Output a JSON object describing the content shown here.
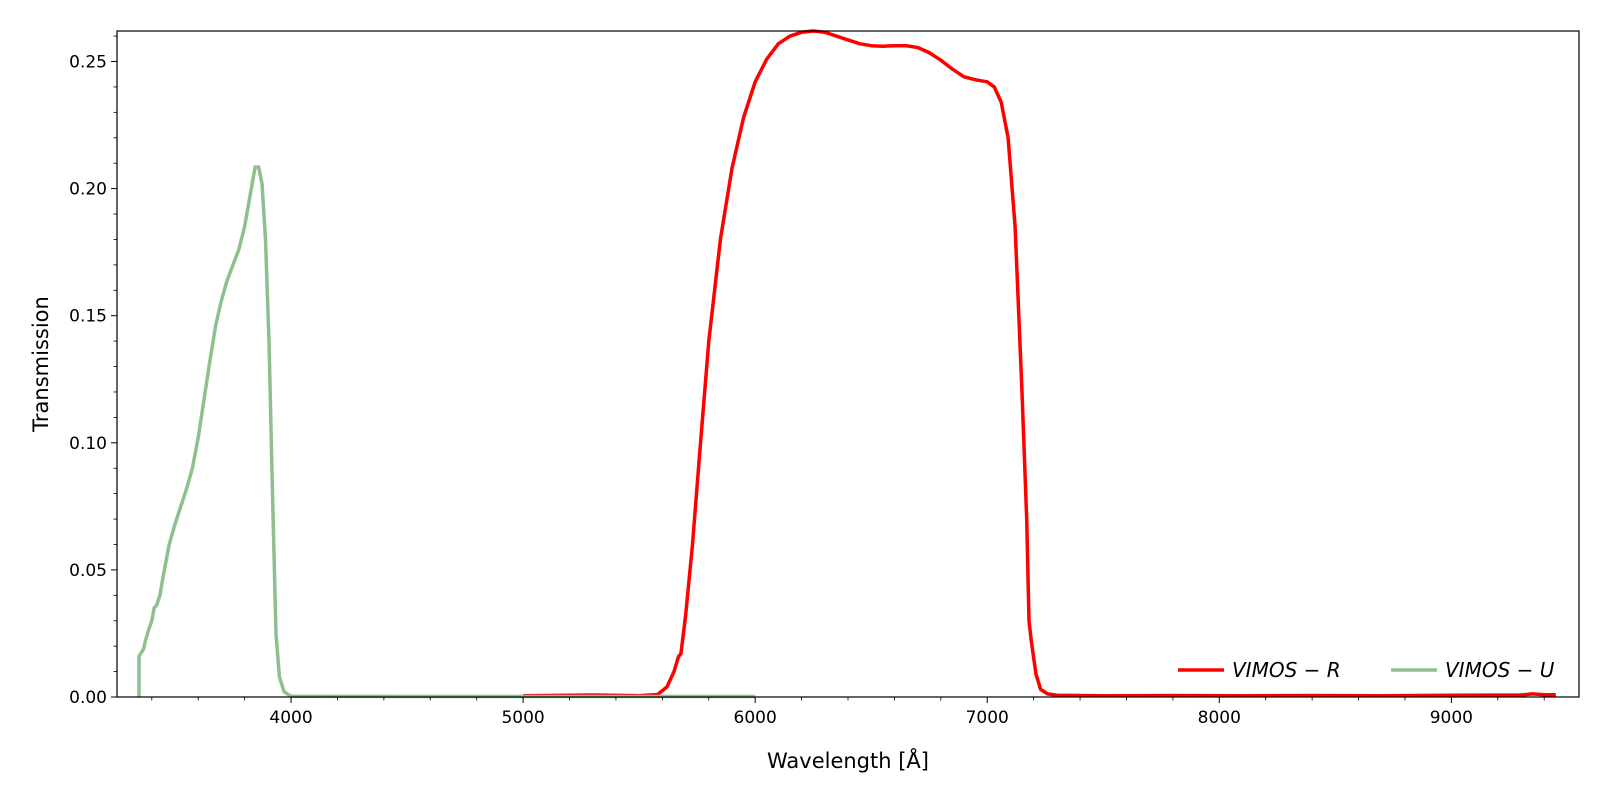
{
  "chart_data": {
    "type": "line",
    "xlabel": "Wavelength [Å]",
    "ylabel": "Transmission",
    "xlim": [
      3250,
      9550
    ],
    "ylim": [
      0,
      0.262
    ],
    "x_ticks": [
      4000,
      5000,
      6000,
      7000,
      8000,
      9000
    ],
    "x_tick_labels": [
      "4000",
      "5000",
      "6000",
      "7000",
      "8000",
      "9000"
    ],
    "y_ticks": [
      0.0,
      0.05,
      0.1,
      0.15,
      0.2,
      0.25
    ],
    "y_tick_labels": [
      "0.00",
      "0.05",
      "0.10",
      "0.15",
      "0.20",
      "0.25"
    ],
    "grid": false,
    "legend_position": "bottom-right",
    "series": [
      {
        "name": "VIMOS − R",
        "color": "#ff0000",
        "points": [
          [
            5000,
            0.0005
          ],
          [
            5300,
            0.0008
          ],
          [
            5500,
            0.0005
          ],
          [
            5580,
            0.001
          ],
          [
            5620,
            0.004
          ],
          [
            5650,
            0.01
          ],
          [
            5670,
            0.016
          ],
          [
            5680,
            0.017
          ],
          [
            5700,
            0.032
          ],
          [
            5730,
            0.06
          ],
          [
            5760,
            0.095
          ],
          [
            5800,
            0.14
          ],
          [
            5850,
            0.18
          ],
          [
            5900,
            0.208
          ],
          [
            5950,
            0.228
          ],
          [
            6000,
            0.242
          ],
          [
            6050,
            0.251
          ],
          [
            6100,
            0.257
          ],
          [
            6150,
            0.26
          ],
          [
            6200,
            0.2615
          ],
          [
            6250,
            0.262
          ],
          [
            6300,
            0.2615
          ],
          [
            6350,
            0.26
          ],
          [
            6400,
            0.2585
          ],
          [
            6450,
            0.257
          ],
          [
            6500,
            0.2562
          ],
          [
            6550,
            0.256
          ],
          [
            6600,
            0.2562
          ],
          [
            6650,
            0.2562
          ],
          [
            6700,
            0.2555
          ],
          [
            6750,
            0.2535
          ],
          [
            6800,
            0.2505
          ],
          [
            6850,
            0.247
          ],
          [
            6900,
            0.244
          ],
          [
            6950,
            0.2428
          ],
          [
            7000,
            0.242
          ],
          [
            7030,
            0.24
          ],
          [
            7060,
            0.234
          ],
          [
            7090,
            0.22
          ],
          [
            7120,
            0.185
          ],
          [
            7150,
            0.12
          ],
          [
            7170,
            0.07
          ],
          [
            7180,
            0.03
          ],
          [
            7190,
            0.022
          ],
          [
            7210,
            0.009
          ],
          [
            7230,
            0.003
          ],
          [
            7260,
            0.0012
          ],
          [
            7300,
            0.0007
          ],
          [
            7500,
            0.0005
          ],
          [
            7800,
            0.0006
          ],
          [
            8100,
            0.0005
          ],
          [
            8400,
            0.0006
          ],
          [
            8700,
            0.0005
          ],
          [
            9000,
            0.0007
          ],
          [
            9300,
            0.0008
          ],
          [
            9350,
            0.0012
          ],
          [
            9400,
            0.0009
          ],
          [
            9450,
            0.0009
          ]
        ]
      },
      {
        "name": "VIMOS − U",
        "color": "#8fbf8f",
        "points": [
          [
            3345,
            0.0
          ],
          [
            3345,
            0.016
          ],
          [
            3365,
            0.019
          ],
          [
            3372,
            0.022
          ],
          [
            3385,
            0.026
          ],
          [
            3400,
            0.03
          ],
          [
            3410,
            0.035
          ],
          [
            3420,
            0.036
          ],
          [
            3435,
            0.04
          ],
          [
            3450,
            0.048
          ],
          [
            3475,
            0.06
          ],
          [
            3500,
            0.068
          ],
          [
            3525,
            0.075
          ],
          [
            3550,
            0.082
          ],
          [
            3575,
            0.09
          ],
          [
            3600,
            0.102
          ],
          [
            3625,
            0.117
          ],
          [
            3650,
            0.132
          ],
          [
            3675,
            0.146
          ],
          [
            3700,
            0.156
          ],
          [
            3725,
            0.164
          ],
          [
            3750,
            0.17
          ],
          [
            3775,
            0.176
          ],
          [
            3800,
            0.185
          ],
          [
            3825,
            0.198
          ],
          [
            3845,
            0.2085
          ],
          [
            3860,
            0.2085
          ],
          [
            3875,
            0.202
          ],
          [
            3890,
            0.18
          ],
          [
            3905,
            0.14
          ],
          [
            3920,
            0.08
          ],
          [
            3935,
            0.025
          ],
          [
            3950,
            0.008
          ],
          [
            3970,
            0.002
          ],
          [
            4000,
            0.0003
          ],
          [
            4500,
            0.0002
          ],
          [
            5000,
            0.0002
          ],
          [
            5500,
            0.0002
          ],
          [
            6000,
            0.0002
          ]
        ]
      }
    ]
  }
}
